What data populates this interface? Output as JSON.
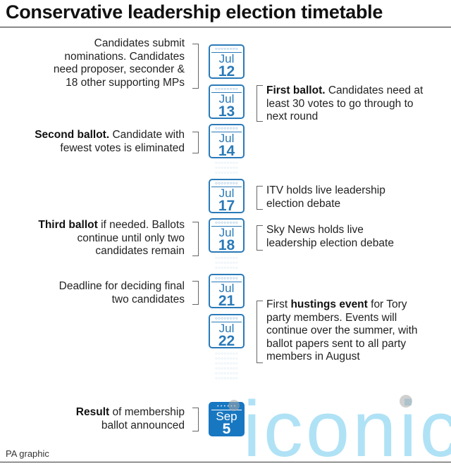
{
  "title": "Conservative leadership election timetable",
  "dates": [
    {
      "month": "Jul",
      "day": "12"
    },
    {
      "month": "Jul",
      "day": "13"
    },
    {
      "month": "Jul",
      "day": "14"
    },
    {
      "month": "Jul",
      "day": "17"
    },
    {
      "month": "Jul",
      "day": "18"
    },
    {
      "month": "Jul",
      "day": "21"
    },
    {
      "month": "Jul",
      "day": "22"
    },
    {
      "month": "Sep",
      "day": "5"
    }
  ],
  "events": [
    {
      "lines": [
        "Candidates submit",
        "nominations. Candidates",
        "need proposer, seconder &",
        "18 other supporting MPs"
      ]
    },
    {
      "bold": "First ballot.",
      "lines": [
        " Candidates need at",
        "least 30 votes to go through to",
        "next round"
      ]
    },
    {
      "bold": "Second ballot.",
      "lines": [
        " Candidate with",
        "fewest votes is eliminated"
      ]
    },
    {
      "lines": [
        "ITV holds live leadership",
        "election debate"
      ]
    },
    {
      "bold": "Third ballot",
      "lines": [
        " if needed. Ballots",
        "continue until only two",
        "candidates remain"
      ]
    },
    {
      "lines": [
        "Sky News holds live",
        "leadership election debate"
      ]
    },
    {
      "lines": [
        "Deadline for deciding final",
        "two candidates"
      ]
    },
    {
      "pre": "First ",
      "bold": "hustings event",
      "lines": [
        " for Tory",
        "party members. Events will",
        "continue over the summer, with",
        "ballot papers sent to all party",
        "members in August"
      ]
    },
    {
      "bold": "Result",
      "lines": [
        " of membership",
        "ballot announced"
      ]
    }
  ],
  "source": "PA graphic",
  "watermark": "iconic",
  "colors": {
    "accent": "#2a7ab8",
    "filled": "#1877c1"
  }
}
